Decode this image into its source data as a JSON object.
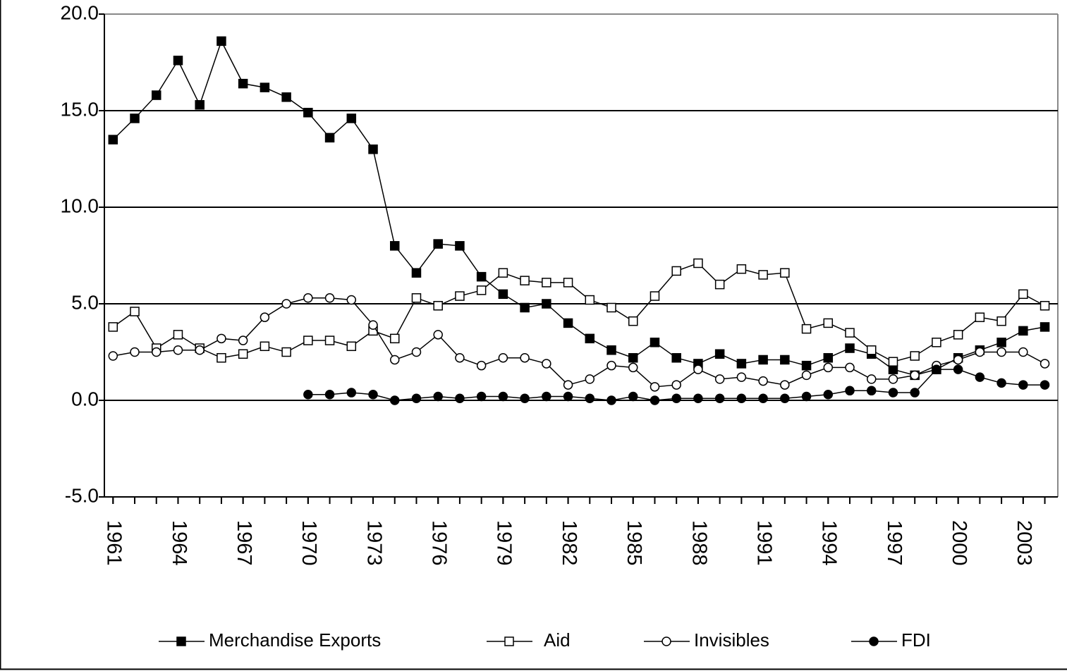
{
  "chart_data": {
    "type": "line",
    "x": [
      1961,
      1962,
      1963,
      1964,
      1965,
      1966,
      1967,
      1968,
      1969,
      1970,
      1971,
      1972,
      1973,
      1974,
      1975,
      1976,
      1977,
      1978,
      1979,
      1980,
      1981,
      1982,
      1983,
      1984,
      1985,
      1986,
      1987,
      1988,
      1989,
      1990,
      1991,
      1992,
      1993,
      1994,
      1995,
      1996,
      1997,
      1998,
      1999,
      2000,
      2001,
      2002,
      2003,
      2004
    ],
    "xlim": [
      1960.6,
      2004.6
    ],
    "xticks": [
      1961,
      1964,
      1967,
      1970,
      1973,
      1976,
      1979,
      1982,
      1985,
      1988,
      1991,
      1994,
      1997,
      2000,
      2003
    ],
    "ylim": [
      -5,
      20
    ],
    "yticks": [
      {
        "value": -5,
        "label": "-5.0"
      },
      {
        "value": 0,
        "label": "0.0"
      },
      {
        "value": 5,
        "label": "5.0"
      },
      {
        "value": 10,
        "label": "10.0"
      },
      {
        "value": 15,
        "label": "15.0"
      },
      {
        "value": 20,
        "label": "20.0"
      }
    ],
    "grid": true,
    "legend": "bottom",
    "series": [
      {
        "name": "Merchandise Exports",
        "color": "#000000",
        "marker": "square",
        "filled": true,
        "values": [
          13.5,
          14.6,
          15.8,
          17.6,
          15.3,
          18.6,
          16.4,
          16.2,
          15.7,
          14.9,
          13.6,
          14.6,
          13.0,
          8.0,
          6.6,
          8.1,
          8.0,
          6.4,
          5.5,
          4.8,
          5.0,
          4.0,
          3.2,
          2.6,
          2.2,
          3.0,
          2.2,
          1.9,
          2.4,
          1.9,
          2.1,
          2.1,
          1.8,
          2.2,
          2.7,
          2.4,
          1.6,
          1.3,
          1.6,
          2.2,
          2.6,
          3.0,
          3.6,
          3.8
        ]
      },
      {
        "name": "Aid",
        "color": "#000000",
        "marker": "square",
        "filled": false,
        "values": [
          3.8,
          4.6,
          2.7,
          3.4,
          2.7,
          2.2,
          2.4,
          2.8,
          2.5,
          3.1,
          3.1,
          2.8,
          3.6,
          3.2,
          5.3,
          4.9,
          5.4,
          5.7,
          6.6,
          6.2,
          6.1,
          6.1,
          5.2,
          4.8,
          4.1,
          5.4,
          6.7,
          7.1,
          6.0,
          6.8,
          6.5,
          6.6,
          3.7,
          4.0,
          3.5,
          2.6,
          2.0,
          2.3,
          3.0,
          3.4,
          4.3,
          4.1,
          5.5,
          4.9
        ]
      },
      {
        "name": "Invisibles",
        "color": "#000000",
        "marker": "circle",
        "filled": false,
        "values": [
          2.3,
          2.5,
          2.5,
          2.6,
          2.6,
          3.2,
          3.1,
          4.3,
          5.0,
          5.3,
          5.3,
          5.2,
          3.9,
          2.1,
          2.5,
          3.4,
          2.2,
          1.8,
          2.2,
          2.2,
          1.9,
          0.8,
          1.1,
          1.8,
          1.7,
          0.7,
          0.8,
          1.6,
          1.1,
          1.2,
          1.0,
          0.8,
          1.3,
          1.7,
          1.7,
          1.1,
          1.1,
          1.3,
          1.8,
          2.1,
          2.5,
          2.5,
          2.5,
          1.9
        ]
      },
      {
        "name": "FDI",
        "color": "#000000",
        "marker": "circle",
        "filled": true,
        "values": [
          null,
          null,
          null,
          null,
          null,
          null,
          null,
          null,
          null,
          0.3,
          0.3,
          0.4,
          0.3,
          0.0,
          0.1,
          0.2,
          0.1,
          0.2,
          0.2,
          0.1,
          0.2,
          0.2,
          0.1,
          0.0,
          0.2,
          0.0,
          0.1,
          0.1,
          0.1,
          0.1,
          0.1,
          0.1,
          0.2,
          0.3,
          0.5,
          0.5,
          0.4,
          0.4,
          1.6,
          1.6,
          1.2,
          0.9,
          0.8,
          0.8
        ]
      }
    ]
  }
}
